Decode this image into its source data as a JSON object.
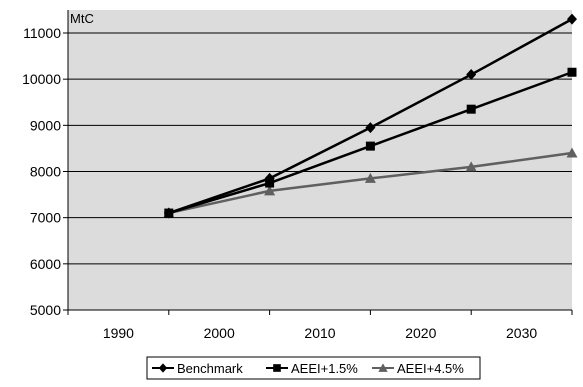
{
  "chart_data": {
    "type": "line",
    "unit_label": "MtC",
    "x": [
      1995,
      2005,
      2015,
      2025,
      2035
    ],
    "xticks": [
      1990,
      2000,
      2010,
      2020,
      2030
    ],
    "xlim": [
      1985,
      2035
    ],
    "ylim": [
      5000,
      11000
    ],
    "yticks": [
      5000,
      6000,
      7000,
      8000,
      9000,
      10000,
      11000
    ],
    "grid": "horizontal",
    "legend_position": "bottom",
    "plot_background": "#dcdcdc",
    "series": [
      {
        "name": "Benchmark",
        "marker": "diamond",
        "color": "#000000",
        "values": [
          7100,
          7850,
          8950,
          10100,
          11300
        ]
      },
      {
        "name": "AEEI+1.5%",
        "marker": "square",
        "color": "#000000",
        "values": [
          7100,
          7750,
          8550,
          9350,
          10150
        ]
      },
      {
        "name": "AEEI+4.5%",
        "marker": "triangle",
        "color": "#606060",
        "values": [
          7100,
          7580,
          7850,
          8100,
          8400
        ]
      }
    ]
  }
}
